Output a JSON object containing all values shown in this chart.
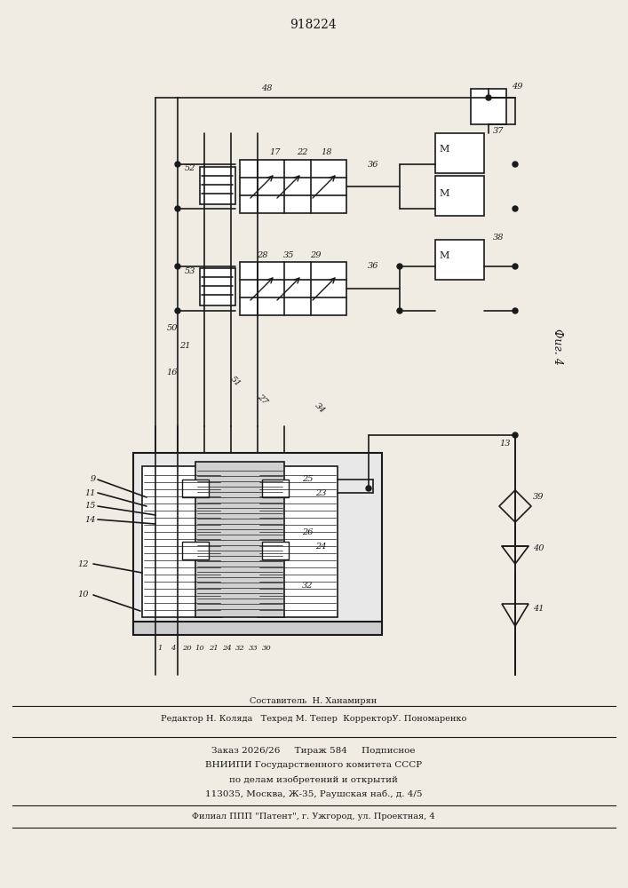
{
  "title": "918224",
  "fig_label": "Фиг. 4",
  "background_color": "#f0ece4",
  "line_color": "#1a1a1a",
  "footer_lines": [
    "Составитель  Н. Ханамирян",
    "Редактор Н. Коляда   Техред М. Тепер  КорректорУ. Пономаренко",
    "Заказ 2026/26     Тираж 584     Подписное",
    "ВНИИПИ Государственного комитета СССР",
    "по делам изобретений и открытий",
    "113035, Москва, Ж-35, Раушская наб., д. 4/5",
    "Филиал ППП \"Патент\", г. Ужгород, ул. Проектная, 4"
  ]
}
